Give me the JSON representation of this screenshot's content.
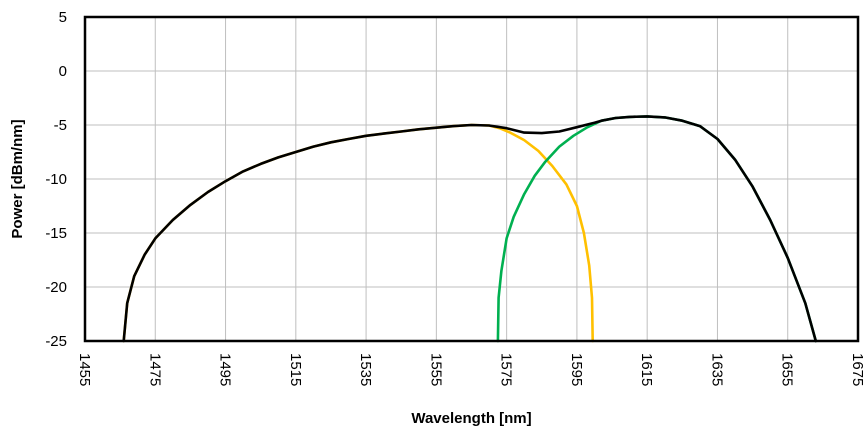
{
  "chart_data": {
    "type": "line",
    "title": "",
    "xlabel": "Wavelength [nm]",
    "ylabel": "Power [dBm/nm]",
    "xlim": [
      1455,
      1675
    ],
    "ylim": [
      -25,
      5
    ],
    "x_ticks": [
      "1455",
      "1475",
      "1495",
      "1515",
      "1535",
      "1555",
      "1575",
      "1595",
      "1615",
      "1635",
      "1655",
      "1675"
    ],
    "y_ticks": [
      "5",
      "0",
      "-5",
      "-10",
      "-15",
      "-20",
      "-25"
    ],
    "grid": true,
    "legend": "none",
    "colors": {
      "black": "#000000",
      "yellow": "#FFC000",
      "green": "#00B050",
      "grid": "#bfbfbf"
    },
    "series": [
      {
        "color": "#FFC000",
        "points": [
          [
            1466,
            -25
          ],
          [
            1467,
            -21.5
          ],
          [
            1469,
            -19
          ],
          [
            1472,
            -17
          ],
          [
            1475,
            -15.5
          ],
          [
            1480,
            -13.8
          ],
          [
            1485,
            -12.4
          ],
          [
            1490,
            -11.2
          ],
          [
            1495,
            -10.2
          ],
          [
            1500,
            -9.3
          ],
          [
            1505,
            -8.6
          ],
          [
            1510,
            -8.0
          ],
          [
            1515,
            -7.5
          ],
          [
            1520,
            -7.0
          ],
          [
            1525,
            -6.6
          ],
          [
            1530,
            -6.3
          ],
          [
            1535,
            -6.0
          ],
          [
            1540,
            -5.8
          ],
          [
            1545,
            -5.6
          ],
          [
            1550,
            -5.4
          ],
          [
            1555,
            -5.25
          ],
          [
            1560,
            -5.1
          ],
          [
            1565,
            -5.0
          ],
          [
            1570,
            -5.05
          ],
          [
            1573,
            -5.3
          ],
          [
            1576,
            -5.7
          ],
          [
            1580,
            -6.4
          ],
          [
            1584,
            -7.4
          ],
          [
            1588,
            -8.8
          ],
          [
            1592,
            -10.5
          ],
          [
            1595,
            -12.5
          ],
          [
            1597,
            -15
          ],
          [
            1598.5,
            -18
          ],
          [
            1599.3,
            -21
          ],
          [
            1599.5,
            -25
          ]
        ]
      },
      {
        "color": "#00B050",
        "points": [
          [
            1572.5,
            -25
          ],
          [
            1572.7,
            -21
          ],
          [
            1573.5,
            -18.5
          ],
          [
            1575,
            -15.5
          ],
          [
            1577,
            -13.5
          ],
          [
            1580,
            -11.4
          ],
          [
            1583,
            -9.7
          ],
          [
            1586,
            -8.4
          ],
          [
            1590,
            -7.0
          ],
          [
            1594,
            -6.0
          ],
          [
            1598,
            -5.2
          ],
          [
            1602,
            -4.6
          ],
          [
            1606,
            -4.35
          ],
          [
            1610,
            -4.25
          ],
          [
            1615,
            -4.2
          ],
          [
            1620,
            -4.3
          ],
          [
            1625,
            -4.6
          ],
          [
            1630,
            -5.1
          ],
          [
            1635,
            -6.3
          ],
          [
            1640,
            -8.2
          ],
          [
            1645,
            -10.7
          ],
          [
            1650,
            -13.8
          ],
          [
            1655,
            -17.3
          ],
          [
            1660,
            -21.5
          ],
          [
            1663,
            -25
          ]
        ]
      },
      {
        "color": "#000000",
        "points": [
          [
            1466,
            -25
          ],
          [
            1467,
            -21.5
          ],
          [
            1469,
            -19
          ],
          [
            1472,
            -17
          ],
          [
            1475,
            -15.5
          ],
          [
            1480,
            -13.8
          ],
          [
            1485,
            -12.4
          ],
          [
            1490,
            -11.2
          ],
          [
            1495,
            -10.2
          ],
          [
            1500,
            -9.3
          ],
          [
            1505,
            -8.6
          ],
          [
            1510,
            -8.0
          ],
          [
            1515,
            -7.5
          ],
          [
            1520,
            -7.0
          ],
          [
            1525,
            -6.6
          ],
          [
            1530,
            -6.3
          ],
          [
            1535,
            -6.0
          ],
          [
            1540,
            -5.8
          ],
          [
            1545,
            -5.6
          ],
          [
            1550,
            -5.4
          ],
          [
            1555,
            -5.25
          ],
          [
            1560,
            -5.1
          ],
          [
            1565,
            -5.0
          ],
          [
            1570,
            -5.05
          ],
          [
            1575,
            -5.3
          ],
          [
            1580,
            -5.7
          ],
          [
            1585,
            -5.75
          ],
          [
            1590,
            -5.6
          ],
          [
            1595,
            -5.2
          ],
          [
            1600,
            -4.8
          ],
          [
            1602,
            -4.6
          ],
          [
            1606,
            -4.35
          ],
          [
            1610,
            -4.25
          ],
          [
            1615,
            -4.2
          ],
          [
            1620,
            -4.3
          ],
          [
            1625,
            -4.6
          ],
          [
            1630,
            -5.1
          ],
          [
            1635,
            -6.3
          ],
          [
            1640,
            -8.2
          ],
          [
            1645,
            -10.7
          ],
          [
            1650,
            -13.8
          ],
          [
            1655,
            -17.3
          ],
          [
            1660,
            -21.5
          ],
          [
            1663,
            -25
          ]
        ]
      }
    ]
  }
}
